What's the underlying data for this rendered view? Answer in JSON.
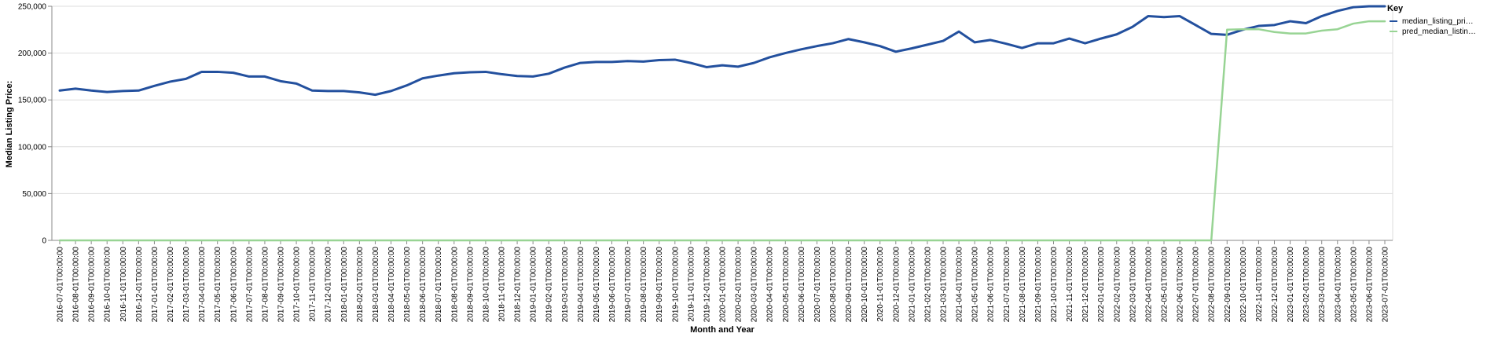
{
  "chart_data": {
    "type": "line",
    "xlabel": "Month and Year",
    "ylabel": "Median Listing Price:",
    "ylim": [
      0,
      250000
    ],
    "y_ticks": [
      "0",
      "50,000",
      "100,000",
      "150,000",
      "200,000",
      "250,000"
    ],
    "grid": true,
    "legend": {
      "title": "Key",
      "placement": "right",
      "entries": [
        "median_listing_pri…",
        "pred_median_listin…"
      ]
    },
    "x": [
      "2016-07-01T00:00:00",
      "2016-08-01T00:00:00",
      "2016-09-01T00:00:00",
      "2016-10-01T00:00:00",
      "2016-11-01T00:00:00",
      "2016-12-01T00:00:00",
      "2017-01-01T00:00:00",
      "2017-02-01T00:00:00",
      "2017-03-01T00:00:00",
      "2017-04-01T00:00:00",
      "2017-05-01T00:00:00",
      "2017-06-01T00:00:00",
      "2017-07-01T00:00:00",
      "2017-08-01T00:00:00",
      "2017-09-01T00:00:00",
      "2017-10-01T00:00:00",
      "2017-11-01T00:00:00",
      "2017-12-01T00:00:00",
      "2018-01-01T00:00:00",
      "2018-02-01T00:00:00",
      "2018-03-01T00:00:00",
      "2018-04-01T00:00:00",
      "2018-05-01T00:00:00",
      "2018-06-01T00:00:00",
      "2018-07-01T00:00:00",
      "2018-08-01T00:00:00",
      "2018-09-01T00:00:00",
      "2018-10-01T00:00:00",
      "2018-11-01T00:00:00",
      "2018-12-01T00:00:00",
      "2019-01-01T00:00:00",
      "2019-02-01T00:00:00",
      "2019-03-01T00:00:00",
      "2019-04-01T00:00:00",
      "2019-05-01T00:00:00",
      "2019-06-01T00:00:00",
      "2019-07-01T00:00:00",
      "2019-08-01T00:00:00",
      "2019-09-01T00:00:00",
      "2019-10-01T00:00:00",
      "2019-11-01T00:00:00",
      "2019-12-01T00:00:00",
      "2020-01-01T00:00:00",
      "2020-02-01T00:00:00",
      "2020-03-01T00:00:00",
      "2020-04-01T00:00:00",
      "2020-05-01T00:00:00",
      "2020-06-01T00:00:00",
      "2020-07-01T00:00:00",
      "2020-08-01T00:00:00",
      "2020-09-01T00:00:00",
      "2020-10-01T00:00:00",
      "2020-11-01T00:00:00",
      "2020-12-01T00:00:00",
      "2021-01-01T00:00:00",
      "2021-02-01T00:00:00",
      "2021-03-01T00:00:00",
      "2021-04-01T00:00:00",
      "2021-05-01T00:00:00",
      "2021-06-01T00:00:00",
      "2021-07-01T00:00:00",
      "2021-08-01T00:00:00",
      "2021-09-01T00:00:00",
      "2021-10-01T00:00:00",
      "2021-11-01T00:00:00",
      "2021-12-01T00:00:00",
      "2022-01-01T00:00:00",
      "2022-02-01T00:00:00",
      "2022-03-01T00:00:00",
      "2022-04-01T00:00:00",
      "2022-05-01T00:00:00",
      "2022-06-01T00:00:00",
      "2022-07-01T00:00:00",
      "2022-08-01T00:00:00",
      "2022-09-01T00:00:00",
      "2022-10-01T00:00:00",
      "2022-11-01T00:00:00",
      "2022-12-01T00:00:00",
      "2023-01-01T00:00:00",
      "2023-02-01T00:00:00",
      "2023-03-01T00:00:00",
      "2023-04-01T00:00:00",
      "2023-05-01T00:00:00",
      "2023-06-01T00:00:00",
      "2023-07-01T00:00:00"
    ],
    "series": [
      {
        "name": "median_listing_pri…",
        "color": "#23509e",
        "values": [
          160000,
          162000,
          160000,
          158500,
          159500,
          160000,
          165000,
          169500,
          172500,
          180000,
          180000,
          179000,
          175000,
          175000,
          170000,
          167500,
          160000,
          159500,
          159500,
          158000,
          155500,
          159500,
          165500,
          173000,
          176000,
          178500,
          179500,
          180000,
          177500,
          175500,
          175000,
          178000,
          184500,
          189500,
          190500,
          190500,
          191500,
          191000,
          192500,
          193000,
          189500,
          185000,
          187000,
          185500,
          189500,
          195500,
          200000,
          204000,
          207500,
          210500,
          215000,
          211500,
          207500,
          201500,
          205000,
          209000,
          213000,
          223000,
          211500,
          214000,
          210000,
          205500,
          210500,
          210500,
          215500,
          210500,
          215500,
          220000,
          228000,
          239500,
          238500,
          239500,
          230000,
          220500,
          219500,
          225000,
          229000,
          230000,
          234000,
          232000,
          239500,
          245000,
          249000,
          250000,
          250000
        ]
      },
      {
        "name": "pred_median_listin…",
        "color": "#98d494",
        "values": [
          0,
          0,
          0,
          0,
          0,
          0,
          0,
          0,
          0,
          0,
          0,
          0,
          0,
          0,
          0,
          0,
          0,
          0,
          0,
          0,
          0,
          0,
          0,
          0,
          0,
          0,
          0,
          0,
          0,
          0,
          0,
          0,
          0,
          0,
          0,
          0,
          0,
          0,
          0,
          0,
          0,
          0,
          0,
          0,
          0,
          0,
          0,
          0,
          0,
          0,
          0,
          0,
          0,
          0,
          0,
          0,
          0,
          0,
          0,
          0,
          0,
          0,
          0,
          0,
          0,
          0,
          0,
          0,
          0,
          0,
          0,
          0,
          0,
          0,
          225000,
          225500,
          225500,
          222500,
          221000,
          221000,
          224000,
          225500,
          231500,
          234000,
          234000
        ]
      }
    ]
  }
}
